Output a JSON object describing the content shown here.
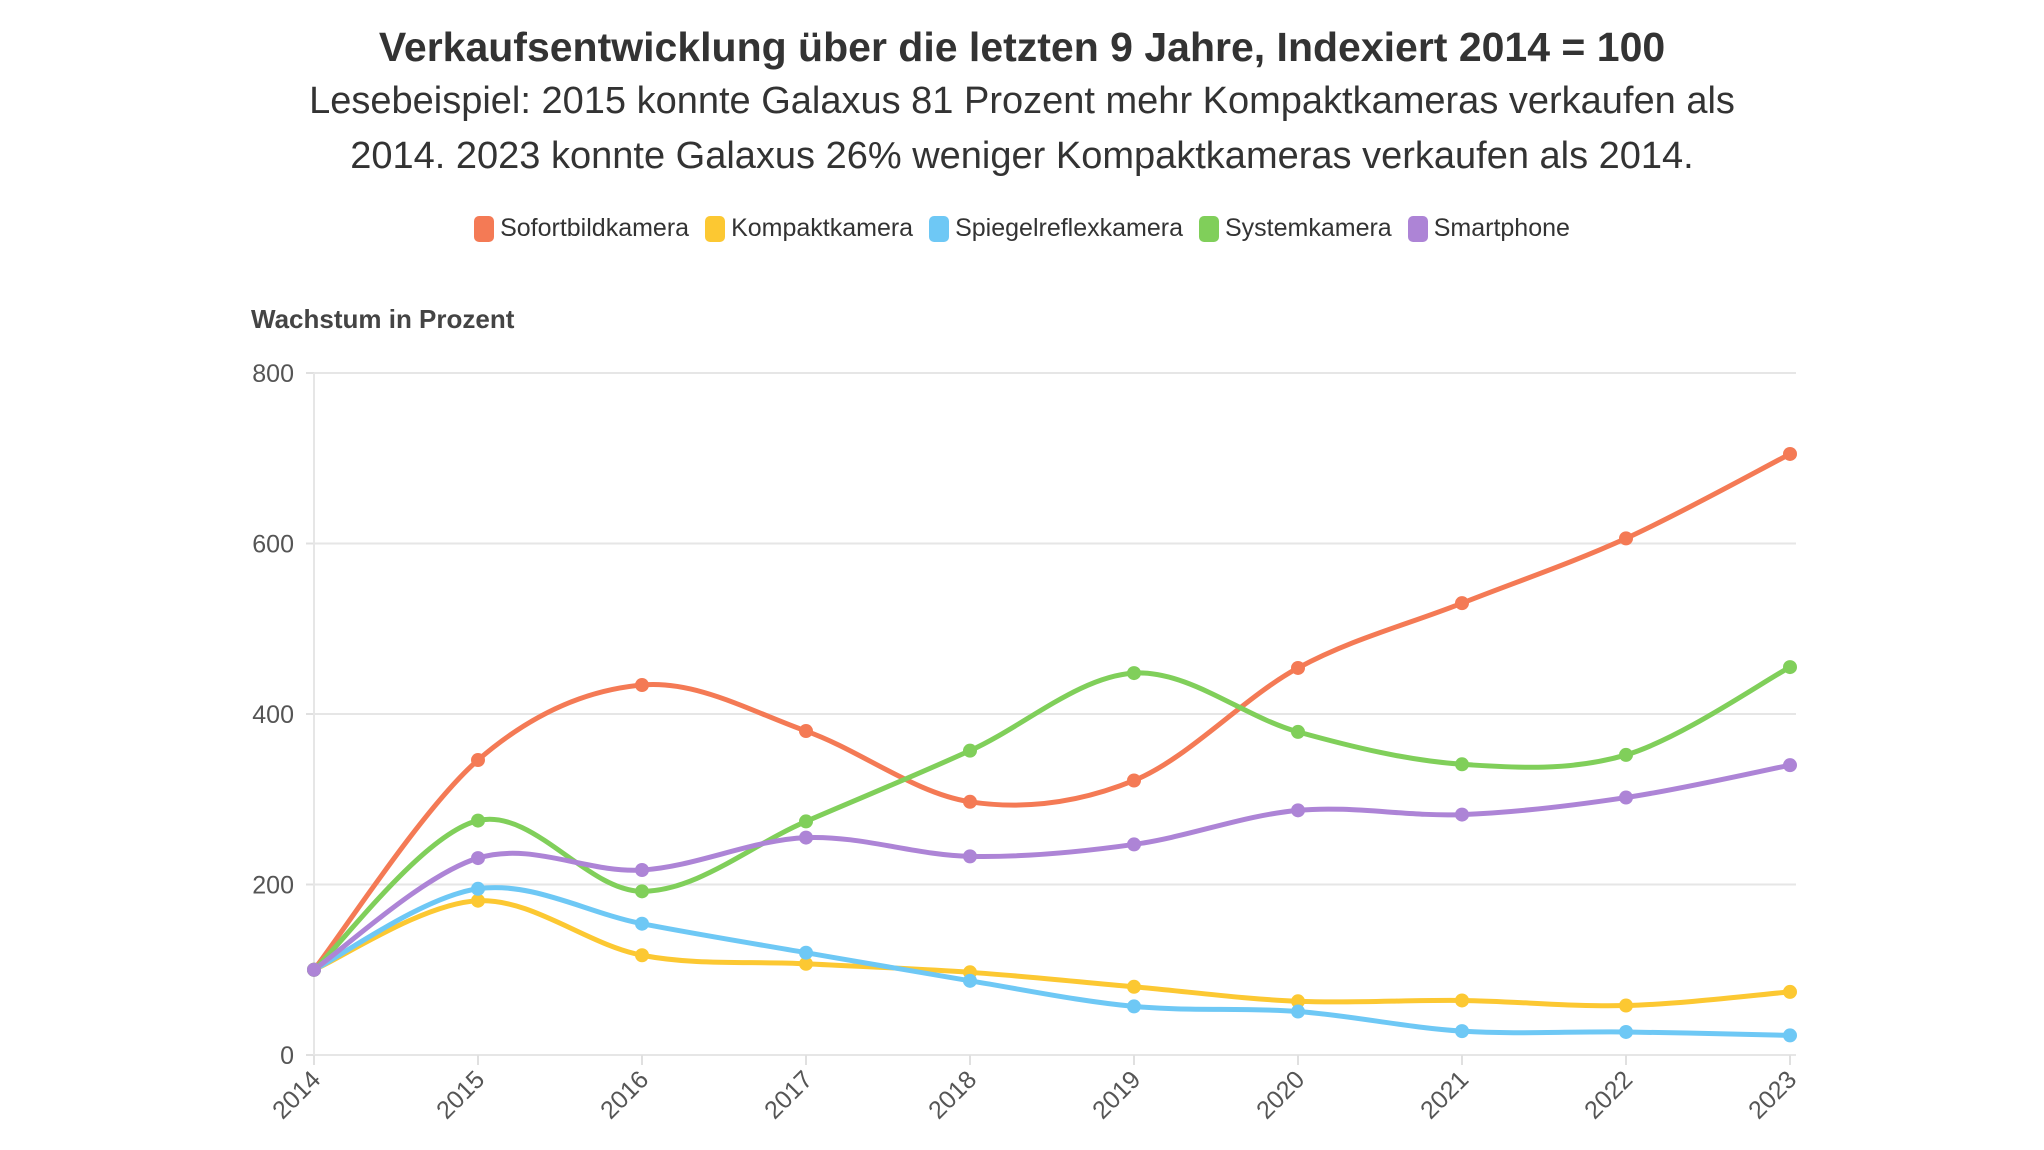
{
  "chart_data": {
    "type": "line",
    "title": "Verkaufsentwicklung über die letzten 9 Jahre, Indexiert 2014 = 100",
    "subtitle_lines": [
      "Lesebeispiel: 2015 konnte Galaxus 81 Prozent mehr Kompaktkameras verkaufen als",
      "2014. 2023 konnte Galaxus 26% weniger Kompaktkameras verkaufen als 2014."
    ],
    "ylabel": "Wachstum in Prozent",
    "xlabel": "",
    "ylim": [
      0,
      800
    ],
    "yticks": [
      "0",
      "200",
      "400",
      "600",
      "800"
    ],
    "x": [
      "2014",
      "2015",
      "2016",
      "2017",
      "2018",
      "2019",
      "2020",
      "2021",
      "2022",
      "2023"
    ],
    "grid": "horizontal",
    "legend_position": "top",
    "smooth": true,
    "series": [
      {
        "name": "Sofortbildkamera",
        "color": "#f47a55",
        "values": [
          100,
          346,
          434,
          380,
          297,
          322,
          454,
          530,
          606,
          705
        ]
      },
      {
        "name": "Kompaktkamera",
        "color": "#fcc832",
        "values": [
          100,
          181,
          117,
          107,
          97,
          80,
          63,
          64,
          58,
          74
        ]
      },
      {
        "name": "Spiegelreflexkamera",
        "color": "#6ec8f5",
        "values": [
          100,
          195,
          154,
          120,
          87,
          57,
          51,
          28,
          27,
          23
        ]
      },
      {
        "name": "Systemkamera",
        "color": "#80cf5a",
        "values": [
          100,
          275,
          192,
          274,
          357,
          448,
          379,
          341,
          352,
          455
        ]
      },
      {
        "name": "Smartphone",
        "color": "#ad84d6",
        "values": [
          100,
          231,
          217,
          255,
          233,
          247,
          287,
          282,
          302,
          340
        ]
      }
    ]
  }
}
